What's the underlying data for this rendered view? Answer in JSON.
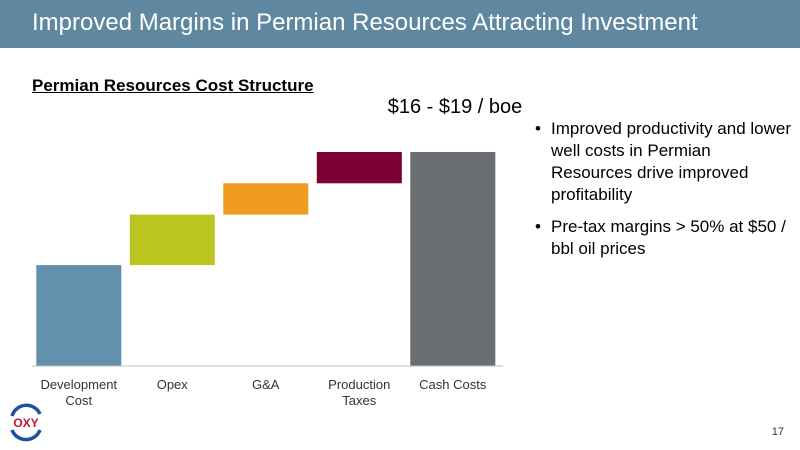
{
  "header": {
    "title": "Improved Margins in Permian Resources Attracting Investment"
  },
  "chart_subtitle": "Permian Resources Cost Structure",
  "total_label": "$16 - $19 / boe",
  "bullets": [
    "Improved productivity and lower well costs in Permian Resources drive improved profitability",
    "Pre-tax margins > 50% at $50 / bbl oil prices"
  ],
  "bullet_glyph": "•",
  "logo_text": "OXY",
  "page_number": "17",
  "chart_data": {
    "type": "waterfall",
    "categories": [
      "Development Cost",
      "Opex",
      "G&A",
      "Production Taxes",
      "Cash Costs"
    ],
    "bars": [
      {
        "category": "Development Cost",
        "base": 0,
        "value": 100,
        "color": "#6390ad"
      },
      {
        "category": "Opex",
        "base": 100,
        "value": 50,
        "color": "#bcc520"
      },
      {
        "category": "G&A",
        "base": 150,
        "value": 31,
        "color": "#f09c1f"
      },
      {
        "category": "Production Taxes",
        "base": 181,
        "value": 31,
        "color": "#7c0032"
      },
      {
        "category": "Cash Costs",
        "base": 0,
        "value": 212,
        "color": "#6a6d71",
        "total": true
      }
    ],
    "total_annotation": "$16 - $19 / boe",
    "ylim": [
      0,
      212
    ],
    "grid": false,
    "legend": "none"
  }
}
